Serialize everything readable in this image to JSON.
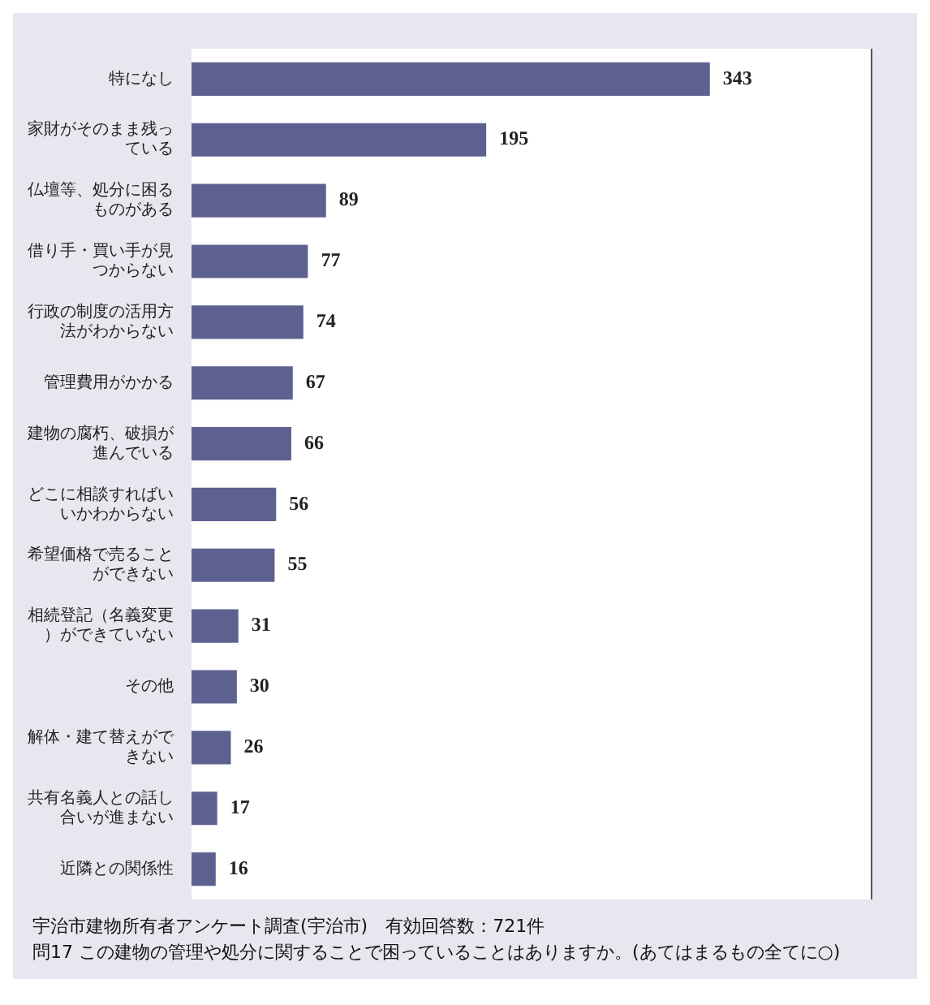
{
  "chart_data": {
    "type": "bar",
    "orientation": "horizontal",
    "categories": [
      "特になし",
      "家財がそのまま残っている",
      "仏壇等、処分に困るものがある",
      "借り手・買い手が見つからない",
      "行政の制度の活用方法がわからない",
      "管理費用がかかる",
      "建物の腐朽、破損が進んでいる",
      "どこに相談すればいいかわからない",
      "希望価格で売ることができない",
      "相続登記（名義変更）ができていない",
      "その他",
      "解体・建て替えができない",
      "共有名義人との話し合いが進まない",
      "近隣との関係性"
    ],
    "values": [
      343,
      195,
      89,
      77,
      74,
      67,
      66,
      56,
      55,
      31,
      30,
      26,
      17,
      16
    ],
    "color": "#5c6190",
    "data_labels": true,
    "grid": false,
    "legend": false,
    "annotations": [
      "宇治市建物所有者アンケート調査(宇治市)　有効回答数：721件",
      "問17 この建物の管理や処分に関することで困っていることはありますか。(あてはまるもの全てに○)"
    ]
  }
}
